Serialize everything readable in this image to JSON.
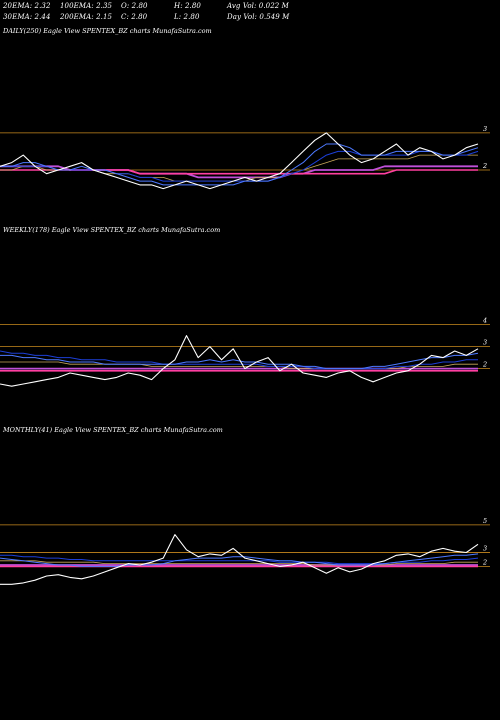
{
  "header": {
    "r1": [
      "20EMA: 2.32",
      "100EMA: 2.35",
      "O: 2.80",
      "H: 2.80",
      "Avg Vol: 0.022  M"
    ],
    "r2": [
      "30EMA: 2.44",
      "200EMA: 2.15",
      "C: 2.80",
      "L: 2.80",
      "Day Vol: 0.549 M"
    ]
  },
  "colors": {
    "price": "#ffffff",
    "ema_short": "#4d79ff",
    "ema_mid": "#1c3fd8",
    "ema_long": "#c050d8",
    "ema_pink": "#ff3fa0",
    "ema_gold": "#c8a85a",
    "ref_line": "#c98a1e"
  },
  "chart_data": [
    {
      "type": "line",
      "label": "DAILY(250) Eagle   View  SPENTEX_BZ charts MunafaSutra.com",
      "tick_labels": [
        "3",
        "2"
      ],
      "tick_values": [
        3,
        2
      ],
      "ylim": [
        1.3,
        3.4
      ],
      "series": [
        {
          "role": "price",
          "values": [
            2.1,
            2.2,
            2.4,
            2.1,
            1.9,
            2.0,
            2.1,
            2.2,
            2.0,
            1.9,
            1.8,
            1.7,
            1.6,
            1.6,
            1.5,
            1.6,
            1.7,
            1.6,
            1.5,
            1.6,
            1.7,
            1.8,
            1.7,
            1.8,
            1.9,
            2.2,
            2.5,
            2.8,
            3.0,
            2.7,
            2.4,
            2.2,
            2.3,
            2.5,
            2.7,
            2.4,
            2.6,
            2.5,
            2.3,
            2.4,
            2.6,
            2.7
          ]
        },
        {
          "role": "ema_short",
          "values": [
            2.1,
            2.1,
            2.2,
            2.2,
            2.1,
            2.0,
            2.0,
            2.1,
            2.0,
            2.0,
            1.9,
            1.8,
            1.7,
            1.7,
            1.6,
            1.6,
            1.6,
            1.6,
            1.6,
            1.6,
            1.6,
            1.7,
            1.7,
            1.7,
            1.8,
            2.0,
            2.2,
            2.5,
            2.7,
            2.7,
            2.6,
            2.4,
            2.4,
            2.4,
            2.5,
            2.5,
            2.5,
            2.5,
            2.4,
            2.4,
            2.5,
            2.6
          ]
        },
        {
          "role": "ema_mid",
          "values": [
            2.1,
            2.1,
            2.1,
            2.1,
            2.1,
            2.0,
            2.0,
            2.0,
            2.0,
            2.0,
            1.9,
            1.9,
            1.8,
            1.8,
            1.7,
            1.7,
            1.7,
            1.7,
            1.7,
            1.7,
            1.7,
            1.7,
            1.7,
            1.7,
            1.8,
            1.9,
            2.0,
            2.2,
            2.4,
            2.5,
            2.5,
            2.4,
            2.4,
            2.4,
            2.4,
            2.4,
            2.5,
            2.5,
            2.4,
            2.4,
            2.4,
            2.5
          ]
        },
        {
          "role": "ema_gold",
          "values": [
            2.0,
            2.0,
            2.1,
            2.1,
            2.0,
            2.0,
            2.0,
            2.0,
            2.0,
            1.9,
            1.9,
            1.9,
            1.8,
            1.8,
            1.8,
            1.7,
            1.7,
            1.7,
            1.7,
            1.7,
            1.7,
            1.7,
            1.8,
            1.8,
            1.8,
            1.9,
            2.0,
            2.1,
            2.2,
            2.3,
            2.3,
            2.3,
            2.3,
            2.3,
            2.3,
            2.3,
            2.4,
            2.4,
            2.4,
            2.4,
            2.4,
            2.4
          ]
        },
        {
          "role": "ema_long",
          "values": [
            2.1,
            2.1,
            2.1,
            2.1,
            2.1,
            2.1,
            2.0,
            2.0,
            2.0,
            2.0,
            2.0,
            2.0,
            1.9,
            1.9,
            1.9,
            1.9,
            1.9,
            1.8,
            1.8,
            1.8,
            1.8,
            1.8,
            1.8,
            1.8,
            1.8,
            1.9,
            1.9,
            2.0,
            2.0,
            2.0,
            2.0,
            2.0,
            2.0,
            2.1,
            2.1,
            2.1,
            2.1,
            2.1,
            2.1,
            2.1,
            2.1,
            2.1
          ]
        },
        {
          "role": "ema_pink",
          "values": [
            2.0,
            2.0,
            2.0,
            2.0,
            2.0,
            2.0,
            2.0,
            2.0,
            2.0,
            2.0,
            2.0,
            2.0,
            1.9,
            1.9,
            1.9,
            1.9,
            1.9,
            1.9,
            1.9,
            1.9,
            1.9,
            1.9,
            1.9,
            1.9,
            1.9,
            1.9,
            1.9,
            1.9,
            1.9,
            1.9,
            1.9,
            1.9,
            1.9,
            1.9,
            2.0,
            2.0,
            2.0,
            2.0,
            2.0,
            2.0,
            2.0,
            2.0
          ]
        }
      ]
    },
    {
      "type": "line",
      "label": "WEEKLY(178) Eagle   View  SPENTEX_BZ charts MunafaSutra.com",
      "tick_labels": [
        "4",
        "3",
        "2"
      ],
      "tick_values": [
        4,
        3,
        2
      ],
      "ylim": [
        0.8,
        4.3
      ],
      "series": [
        {
          "role": "price",
          "values": [
            1.3,
            1.2,
            1.3,
            1.4,
            1.5,
            1.6,
            1.8,
            1.7,
            1.6,
            1.5,
            1.6,
            1.8,
            1.7,
            1.5,
            2.0,
            2.4,
            3.5,
            2.5,
            3.0,
            2.4,
            2.9,
            2.0,
            2.3,
            2.5,
            1.9,
            2.2,
            1.8,
            1.7,
            1.6,
            1.8,
            1.9,
            1.6,
            1.4,
            1.6,
            1.8,
            1.9,
            2.2,
            2.6,
            2.5,
            2.8,
            2.6,
            2.9
          ]
        },
        {
          "role": "ema_short",
          "values": [
            2.6,
            2.6,
            2.5,
            2.5,
            2.4,
            2.4,
            2.3,
            2.3,
            2.3,
            2.2,
            2.2,
            2.2,
            2.2,
            2.2,
            2.2,
            2.2,
            2.3,
            2.3,
            2.4,
            2.3,
            2.4,
            2.3,
            2.3,
            2.2,
            2.2,
            2.2,
            2.1,
            2.1,
            2.0,
            2.0,
            2.0,
            2.0,
            2.1,
            2.1,
            2.2,
            2.3,
            2.4,
            2.5,
            2.5,
            2.6,
            2.6,
            2.7
          ]
        },
        {
          "role": "ema_mid",
          "values": [
            2.8,
            2.7,
            2.7,
            2.6,
            2.6,
            2.5,
            2.5,
            2.4,
            2.4,
            2.4,
            2.3,
            2.3,
            2.3,
            2.3,
            2.2,
            2.2,
            2.2,
            2.2,
            2.2,
            2.2,
            2.2,
            2.2,
            2.2,
            2.1,
            2.1,
            2.1,
            2.1,
            2.0,
            2.0,
            2.0,
            2.0,
            2.0,
            2.0,
            2.0,
            2.1,
            2.1,
            2.2,
            2.2,
            2.3,
            2.3,
            2.4,
            2.4
          ]
        },
        {
          "role": "ema_gold",
          "values": [
            2.3,
            2.3,
            2.3,
            2.3,
            2.3,
            2.3,
            2.2,
            2.2,
            2.2,
            2.2,
            2.2,
            2.2,
            2.2,
            2.1,
            2.1,
            2.1,
            2.1,
            2.1,
            2.1,
            2.1,
            2.1,
            2.1,
            2.1,
            2.1,
            2.1,
            2.0,
            2.0,
            2.0,
            2.0,
            2.0,
            2.0,
            2.0,
            2.0,
            2.0,
            2.0,
            2.1,
            2.1,
            2.1,
            2.1,
            2.2,
            2.2,
            2.2
          ]
        },
        {
          "role": "ema_long",
          "values": [
            2.0,
            2.0,
            2.0,
            2.0,
            2.0,
            2.0,
            2.0,
            2.0,
            2.0,
            2.0,
            2.0,
            2.0,
            2.0,
            2.0,
            2.0,
            2.0,
            2.0,
            2.0,
            2.0,
            2.0,
            2.0,
            2.0,
            2.0,
            2.0,
            2.0,
            2.0,
            2.0,
            2.0,
            2.0,
            2.0,
            2.0,
            2.0,
            2.0,
            2.0,
            2.0,
            2.0,
            2.0,
            2.0,
            2.0,
            2.0,
            2.0,
            2.0
          ]
        },
        {
          "role": "ema_pink",
          "values": [
            1.9,
            1.9,
            1.9,
            1.9,
            1.9,
            1.9,
            1.9,
            1.9,
            1.9,
            1.9,
            1.9,
            1.9,
            1.9,
            1.9,
            1.9,
            1.9,
            1.9,
            1.9,
            1.9,
            1.9,
            1.9,
            1.9,
            1.9,
            1.9,
            1.9,
            1.9,
            1.9,
            1.9,
            1.9,
            1.9,
            1.9,
            1.9,
            1.9,
            1.9,
            1.9,
            1.9,
            1.9,
            1.9,
            1.9,
            1.9,
            1.9,
            1.9
          ]
        }
      ]
    },
    {
      "type": "line",
      "label": "MONTHLY(41) Eagle   View  SPENTEX_BZ charts MunafaSutra.com",
      "tick_labels": [
        "5",
        "3",
        "2"
      ],
      "tick_values": [
        5,
        3,
        2
      ],
      "ylim": [
        0.0,
        5.5
      ],
      "series": [
        {
          "role": "price",
          "values": [
            0.7,
            0.7,
            0.8,
            1.0,
            1.3,
            1.4,
            1.2,
            1.1,
            1.3,
            1.6,
            1.9,
            2.2,
            2.1,
            2.3,
            2.6,
            4.3,
            3.2,
            2.7,
            2.9,
            2.8,
            3.3,
            2.6,
            2.4,
            2.2,
            2.0,
            2.1,
            2.3,
            1.9,
            1.5,
            1.9,
            1.6,
            1.8,
            2.2,
            2.4,
            2.8,
            2.9,
            2.7,
            3.1,
            3.3,
            3.1,
            3.0,
            3.6
          ]
        },
        {
          "role": "ema_short",
          "values": [
            2.6,
            2.5,
            2.4,
            2.3,
            2.2,
            2.1,
            2.1,
            2.0,
            2.0,
            2.0,
            2.0,
            2.1,
            2.1,
            2.1,
            2.2,
            2.4,
            2.5,
            2.6,
            2.6,
            2.6,
            2.7,
            2.7,
            2.6,
            2.5,
            2.4,
            2.4,
            2.3,
            2.3,
            2.2,
            2.1,
            2.1,
            2.1,
            2.1,
            2.2,
            2.3,
            2.4,
            2.5,
            2.6,
            2.7,
            2.8,
            2.8,
            2.9
          ]
        },
        {
          "role": "ema_mid",
          "values": [
            2.8,
            2.8,
            2.7,
            2.7,
            2.6,
            2.6,
            2.5,
            2.5,
            2.4,
            2.4,
            2.4,
            2.4,
            2.4,
            2.4,
            2.4,
            2.4,
            2.4,
            2.4,
            2.4,
            2.4,
            2.4,
            2.4,
            2.4,
            2.4,
            2.3,
            2.3,
            2.3,
            2.3,
            2.3,
            2.2,
            2.2,
            2.2,
            2.2,
            2.2,
            2.3,
            2.3,
            2.3,
            2.4,
            2.4,
            2.5,
            2.5,
            2.6
          ]
        },
        {
          "role": "ema_gold",
          "values": [
            2.4,
            2.4,
            2.4,
            2.4,
            2.3,
            2.3,
            2.3,
            2.3,
            2.3,
            2.2,
            2.2,
            2.2,
            2.2,
            2.2,
            2.2,
            2.2,
            2.2,
            2.2,
            2.2,
            2.2,
            2.2,
            2.2,
            2.2,
            2.2,
            2.2,
            2.2,
            2.2,
            2.1,
            2.1,
            2.1,
            2.1,
            2.1,
            2.1,
            2.1,
            2.2,
            2.2,
            2.2,
            2.2,
            2.2,
            2.3,
            2.3,
            2.3
          ]
        },
        {
          "role": "ema_long",
          "values": [
            2.1,
            2.1,
            2.1,
            2.1,
            2.1,
            2.1,
            2.1,
            2.1,
            2.1,
            2.1,
            2.1,
            2.1,
            2.1,
            2.1,
            2.1,
            2.1,
            2.1,
            2.1,
            2.1,
            2.1,
            2.1,
            2.1,
            2.1,
            2.1,
            2.1,
            2.1,
            2.1,
            2.1,
            2.1,
            2.1,
            2.1,
            2.1,
            2.1,
            2.1,
            2.1,
            2.1,
            2.1,
            2.1,
            2.1,
            2.1,
            2.1,
            2.1
          ]
        },
        {
          "role": "ema_pink",
          "values": [
            2.0,
            2.0,
            2.0,
            2.0,
            2.0,
            2.0,
            2.0,
            2.0,
            2.0,
            2.0,
            2.0,
            2.0,
            2.0,
            2.0,
            2.0,
            2.0,
            2.0,
            2.0,
            2.0,
            2.0,
            2.0,
            2.0,
            2.0,
            2.0,
            2.0,
            2.0,
            2.0,
            2.0,
            2.0,
            2.0,
            2.0,
            2.0,
            2.0,
            2.0,
            2.0,
            2.0,
            2.0,
            2.0,
            2.0,
            2.0,
            2.0,
            2.0
          ]
        }
      ]
    }
  ]
}
